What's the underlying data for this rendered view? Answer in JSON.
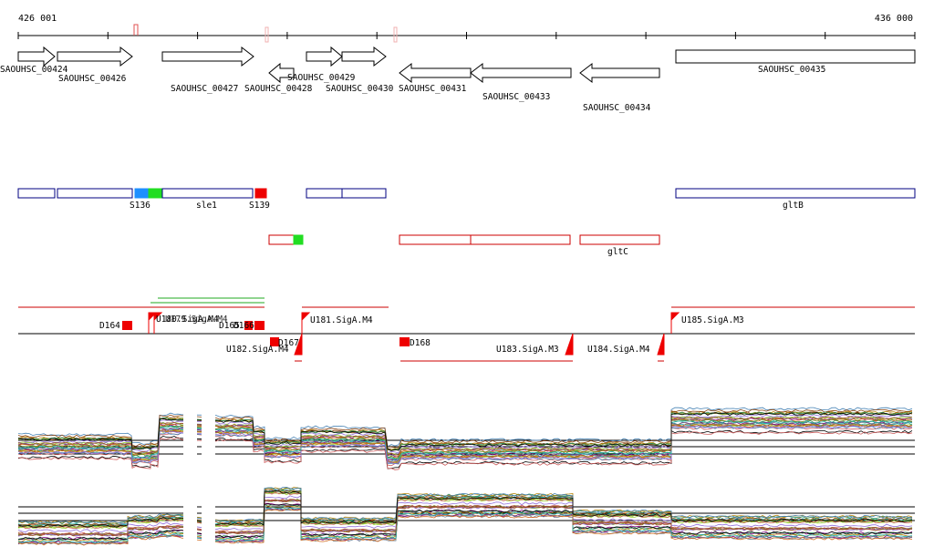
{
  "ruler": {
    "start_label": "426 001",
    "end_label": "436 000"
  },
  "genes": [
    {
      "name": "SAOUHSC_00424",
      "strand": "+"
    },
    {
      "name": "SAOUHSC_00426",
      "strand": "+"
    },
    {
      "name": "SAOUHSC_00427",
      "strand": "+"
    },
    {
      "name": "SAOUHSC_00428",
      "strand": "-"
    },
    {
      "name": "SAOUHSC_00429",
      "strand": "+"
    },
    {
      "name": "SAOUHSC_00430",
      "strand": "+"
    },
    {
      "name": "SAOUHSC_00431",
      "strand": "-"
    },
    {
      "name": "SAOUHSC_00433",
      "strand": "-"
    },
    {
      "name": "SAOUHSC_00434",
      "strand": "-"
    },
    {
      "name": "SAOUHSC_00435",
      "strand": "none"
    }
  ],
  "features_blue": [
    {
      "label": ""
    },
    {
      "label": ""
    },
    {
      "label": "S136"
    },
    {
      "label": "sle1"
    },
    {
      "label": "S139"
    },
    {
      "label": ""
    },
    {
      "label": "gltB"
    }
  ],
  "features_red": [
    {
      "label": ""
    },
    {
      "label": ""
    },
    {
      "label": "gltC"
    }
  ],
  "regulatory": {
    "above": [
      {
        "label": "D164"
      },
      {
        "label": "U180.SigA.M4"
      },
      {
        "label": "U179.SigA.M4"
      },
      {
        "label": "D165"
      },
      {
        "label": "D166"
      },
      {
        "label": "U181.SigA.M4"
      },
      {
        "label": "U185.SigA.M3"
      }
    ],
    "below": [
      {
        "label": "U182.SigA.M4"
      },
      {
        "label": "D167"
      },
      {
        "label": "D168"
      },
      {
        "label": "U183.SigA.M3"
      },
      {
        "label": "U184.SigA.M4"
      }
    ]
  },
  "colors": {
    "gene_outline": "#000000",
    "feature_blue": "#000080",
    "feature_red": "#cc0000",
    "highlight_blue": "#1e90ff",
    "highlight_green": "#22dd22",
    "highlight_red": "#ee0000",
    "profile_lines": [
      "#800080",
      "#8b4513",
      "#2e8b57",
      "#b8860b",
      "#4682b4",
      "#9acd32",
      "#cd5c5c",
      "#708090",
      "#d2691e",
      "#6b8e23",
      "#9370db",
      "#20b2aa",
      "#a0522d",
      "#000000"
    ]
  }
}
